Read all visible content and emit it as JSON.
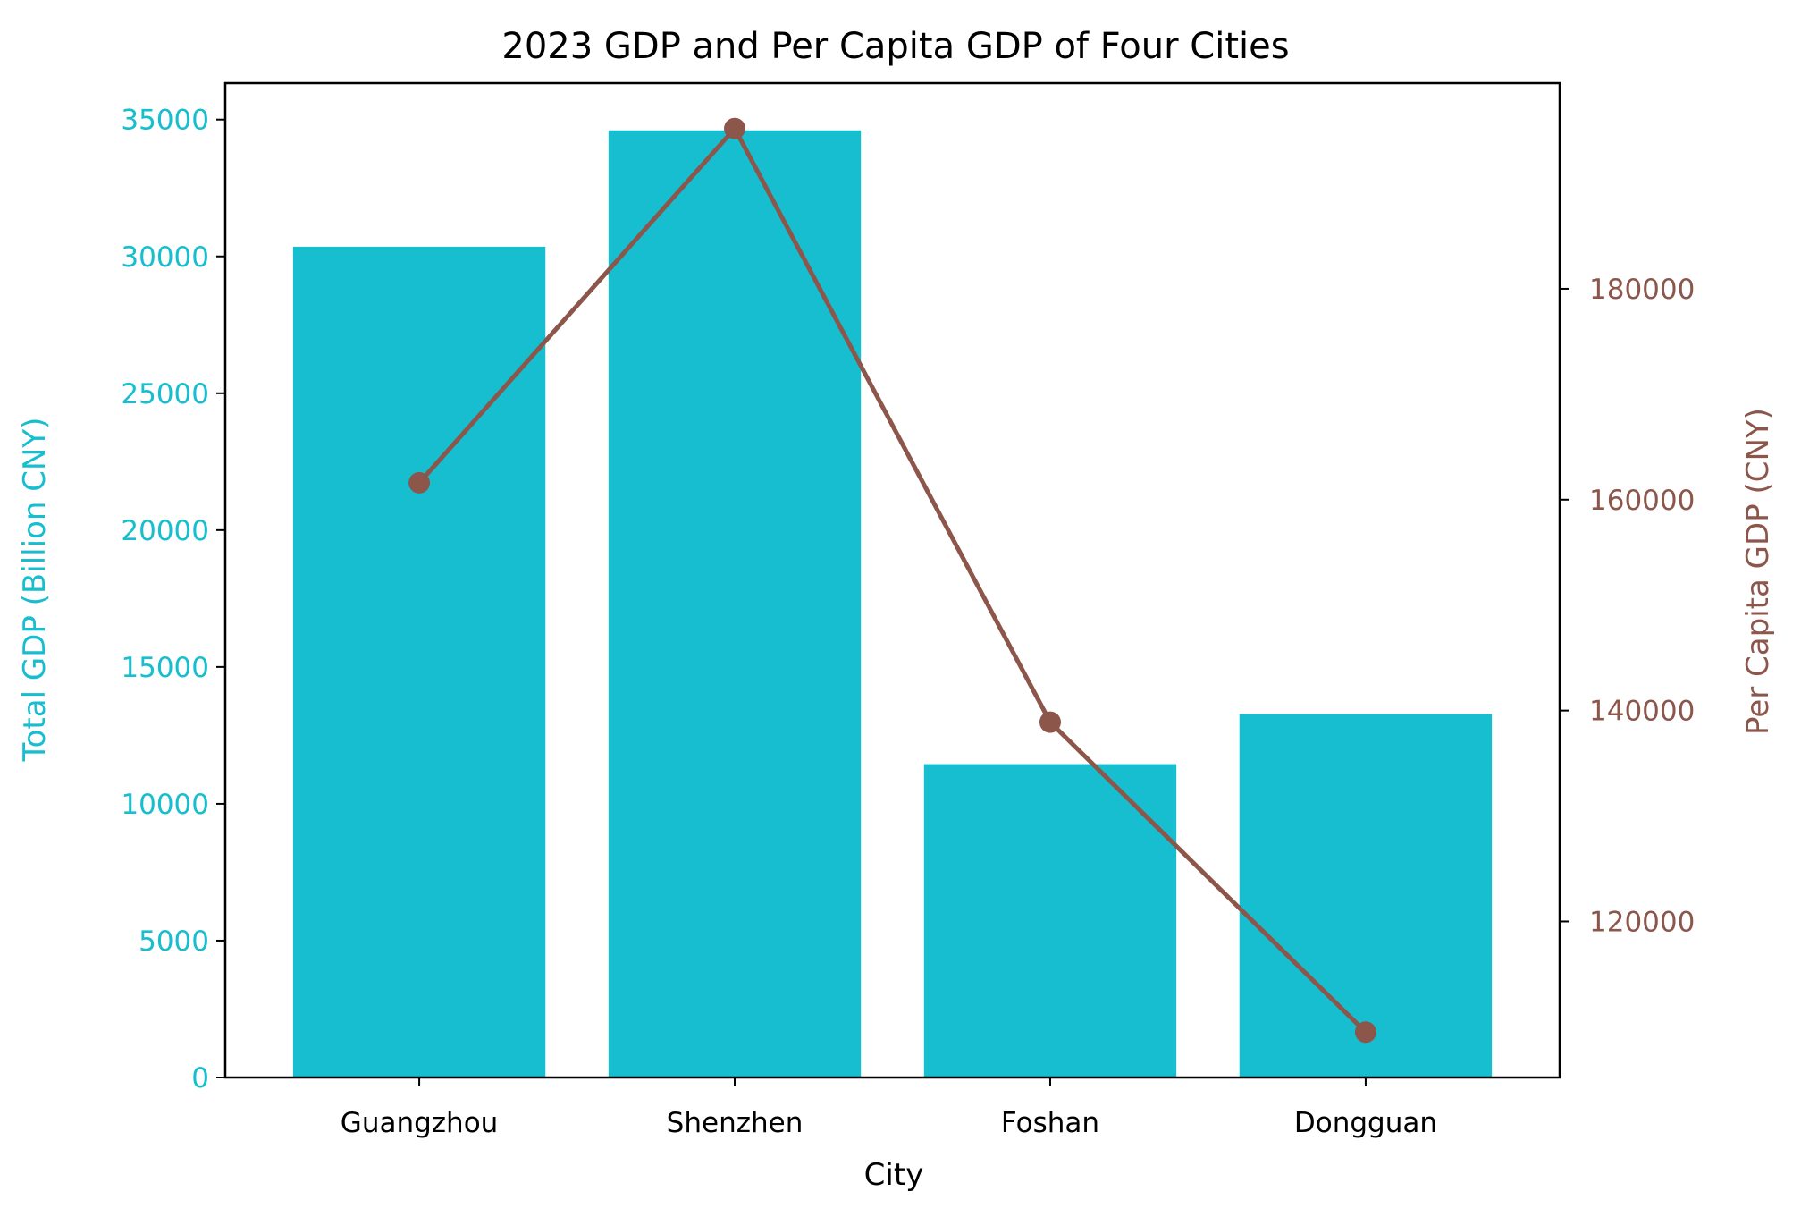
{
  "chart_data": {
    "type": "bar",
    "title": "2023 GDP and Per Capita GDP of Four Cities",
    "xlabel": "City",
    "categories": [
      "Guangzhou",
      "Shenzhen",
      "Foshan",
      "Dongguan"
    ],
    "series": [
      {
        "type": "bar",
        "axis": "left",
        "color": "#17becf",
        "values": [
          30355,
          34606,
          11450,
          13282
        ]
      },
      {
        "type": "line",
        "axis": "right",
        "color": "#8c564b",
        "marker": "circle",
        "values": [
          161600,
          195200,
          138900,
          109500
        ]
      }
    ],
    "y_left": {
      "label": "Total GDP (Billion CNY)",
      "color": "#17becf",
      "ylim": [
        0,
        36330
      ],
      "ticks": [
        0,
        5000,
        10000,
        15000,
        20000,
        25000,
        30000,
        35000
      ],
      "tick_labels": [
        "0",
        "5000",
        "10000",
        "15000",
        "20000",
        "25000",
        "30000",
        "35000"
      ]
    },
    "y_right": {
      "label": "Per Capita GDP (CNY)",
      "color": "#8c564b",
      "ylim": [
        105200,
        199500
      ],
      "ticks": [
        120000,
        140000,
        160000,
        180000
      ],
      "tick_labels": [
        "120000",
        "140000",
        "160000",
        "180000"
      ]
    },
    "grid": false,
    "legend": "none"
  }
}
